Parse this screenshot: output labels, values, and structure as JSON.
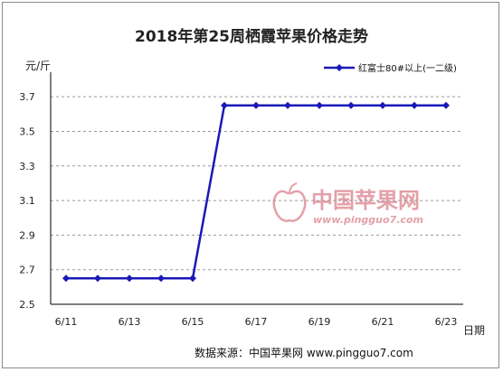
{
  "title": "2018年第25周栖霞苹果价格走势",
  "footer": "数据来源：中国苹果网 www.pingguo7.com",
  "watermark": {
    "cn": "中国苹果网",
    "url": "www.pingguo7.com"
  },
  "colors": {
    "line": "#1a1ab8",
    "marker": "#1a1ab8",
    "axis": "#000000",
    "grid": "#9a9a9a",
    "watermark": "#e4a0a8"
  },
  "chart_data": {
    "type": "line",
    "title": "2018年第25周栖霞苹果价格走势",
    "xlabel": "日期",
    "ylabel": "元/斤",
    "x": [
      "6/11",
      "6/12",
      "6/13",
      "6/14",
      "6/15",
      "6/16",
      "6/17",
      "6/18",
      "6/19",
      "6/20",
      "6/21",
      "6/22",
      "6/23"
    ],
    "x_tick_labels": [
      "6/11",
      "6/13",
      "6/15",
      "6/17",
      "6/19",
      "6/21",
      "6/23"
    ],
    "series": [
      {
        "name": "红富士80#以上(一二级)",
        "values": [
          2.65,
          2.65,
          2.65,
          2.65,
          2.65,
          3.65,
          3.65,
          3.65,
          3.65,
          3.65,
          3.65,
          3.65,
          3.65
        ]
      }
    ],
    "y_ticks": [
      2.5,
      2.7,
      2.9,
      3.1,
      3.3,
      3.5,
      3.7
    ],
    "ylim": [
      2.5,
      3.8
    ],
    "grid": true,
    "legend": "top-right"
  }
}
